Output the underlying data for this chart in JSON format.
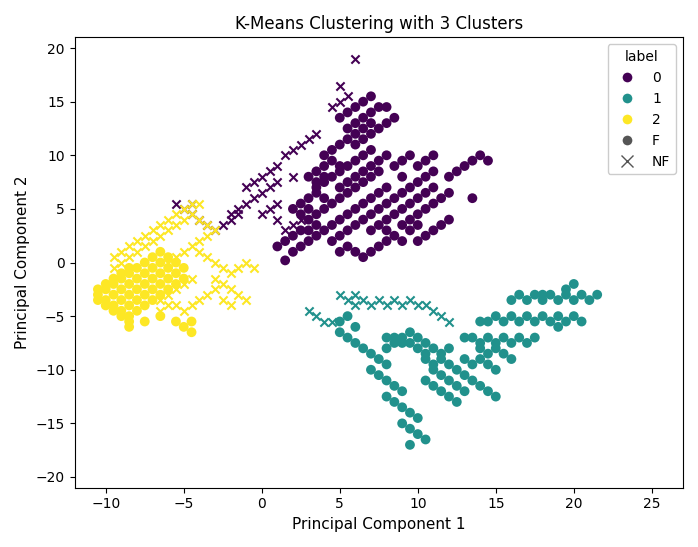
{
  "title": "K-Means Clustering with 3 Clusters",
  "xlabel": "Principal Component 1",
  "ylabel": "Principal Component 2",
  "xlim": [
    -12,
    27
  ],
  "ylim": [
    -21,
    21
  ],
  "colors": {
    "0": "#440154",
    "1": "#21918c",
    "2": "#fde725"
  },
  "legend_title": "label",
  "cluster0_F": [
    [
      1.5,
      0.2
    ],
    [
      2.0,
      1.0
    ],
    [
      2.5,
      1.5
    ],
    [
      3.0,
      2.0
    ],
    [
      3.5,
      2.5
    ],
    [
      4.0,
      3.0
    ],
    [
      4.5,
      3.5
    ],
    [
      5.0,
      4.0
    ],
    [
      5.5,
      4.5
    ],
    [
      6.0,
      5.0
    ],
    [
      6.5,
      5.5
    ],
    [
      7.0,
      6.0
    ],
    [
      7.5,
      6.5
    ],
    [
      8.0,
      7.0
    ],
    [
      3.0,
      4.0
    ],
    [
      3.5,
      4.5
    ],
    [
      4.0,
      5.0
    ],
    [
      4.5,
      5.5
    ],
    [
      5.0,
      6.0
    ],
    [
      5.5,
      6.5
    ],
    [
      6.0,
      7.0
    ],
    [
      6.5,
      7.5
    ],
    [
      7.0,
      8.0
    ],
    [
      7.5,
      8.5
    ],
    [
      3.5,
      7.0
    ],
    [
      4.0,
      7.5
    ],
    [
      4.5,
      8.0
    ],
    [
      5.0,
      8.5
    ],
    [
      5.5,
      9.0
    ],
    [
      6.0,
      9.5
    ],
    [
      6.5,
      10.0
    ],
    [
      7.0,
      10.5
    ],
    [
      4.0,
      10.0
    ],
    [
      4.5,
      10.5
    ],
    [
      5.0,
      11.0
    ],
    [
      5.5,
      11.5
    ],
    [
      6.0,
      12.0
    ],
    [
      6.5,
      12.5
    ],
    [
      7.0,
      13.0
    ],
    [
      5.0,
      13.5
    ],
    [
      5.5,
      14.0
    ],
    [
      6.0,
      14.5
    ],
    [
      6.5,
      15.0
    ],
    [
      7.0,
      15.5
    ],
    [
      3.0,
      3.0
    ],
    [
      3.5,
      3.5
    ],
    [
      2.5,
      3.0
    ],
    [
      2.0,
      2.5
    ],
    [
      1.5,
      2.0
    ],
    [
      1.0,
      1.5
    ],
    [
      4.5,
      2.0
    ],
    [
      5.0,
      2.5
    ],
    [
      5.5,
      3.0
    ],
    [
      6.0,
      3.5
    ],
    [
      6.5,
      4.0
    ],
    [
      7.0,
      4.5
    ],
    [
      7.5,
      5.0
    ],
    [
      8.0,
      5.5
    ],
    [
      8.5,
      6.0
    ],
    [
      9.0,
      6.5
    ],
    [
      9.5,
      7.0
    ],
    [
      10.0,
      7.5
    ],
    [
      10.5,
      8.0
    ],
    [
      11.0,
      8.5
    ],
    [
      8.0,
      4.0
    ],
    [
      8.5,
      4.5
    ],
    [
      9.0,
      5.0
    ],
    [
      9.5,
      5.5
    ],
    [
      10.0,
      6.0
    ],
    [
      10.5,
      6.5
    ],
    [
      11.0,
      7.0
    ],
    [
      9.0,
      3.5
    ],
    [
      9.5,
      4.0
    ],
    [
      10.0,
      4.5
    ],
    [
      10.5,
      5.0
    ],
    [
      11.0,
      5.5
    ],
    [
      11.5,
      6.0
    ],
    [
      12.0,
      6.5
    ],
    [
      7.0,
      3.0
    ],
    [
      7.5,
      3.5
    ],
    [
      8.0,
      3.0
    ],
    [
      8.5,
      2.5
    ],
    [
      9.0,
      2.0
    ],
    [
      9.5,
      3.0
    ],
    [
      10.0,
      3.5
    ],
    [
      5.0,
      1.0
    ],
    [
      5.5,
      1.5
    ],
    [
      6.0,
      1.0
    ],
    [
      6.5,
      0.5
    ],
    [
      7.0,
      1.0
    ],
    [
      7.5,
      1.5
    ],
    [
      8.0,
      2.0
    ],
    [
      3.0,
      6.0
    ],
    [
      3.5,
      6.5
    ],
    [
      4.0,
      6.0
    ],
    [
      2.5,
      5.5
    ],
    [
      2.0,
      5.0
    ],
    [
      2.5,
      4.5
    ],
    [
      3.0,
      5.0
    ],
    [
      5.0,
      7.0
    ],
    [
      5.5,
      7.5
    ],
    [
      6.0,
      8.0
    ],
    [
      6.5,
      8.5
    ],
    [
      7.0,
      9.0
    ],
    [
      7.5,
      9.5
    ],
    [
      8.0,
      10.0
    ],
    [
      4.0,
      9.0
    ],
    [
      4.5,
      9.5
    ],
    [
      5.0,
      9.0
    ],
    [
      3.5,
      8.5
    ],
    [
      3.0,
      8.0
    ],
    [
      3.5,
      7.5
    ],
    [
      4.0,
      8.0
    ],
    [
      6.0,
      11.0
    ],
    [
      6.5,
      11.5
    ],
    [
      7.0,
      12.0
    ],
    [
      7.5,
      12.5
    ],
    [
      8.0,
      13.0
    ],
    [
      8.5,
      13.5
    ],
    [
      5.5,
      12.5
    ],
    [
      6.0,
      13.0
    ],
    [
      6.5,
      13.5
    ],
    [
      7.0,
      14.0
    ],
    [
      7.5,
      14.5
    ],
    [
      8.0,
      14.5
    ],
    [
      8.5,
      9.0
    ],
    [
      9.0,
      9.5
    ],
    [
      9.5,
      10.0
    ],
    [
      10.0,
      9.0
    ],
    [
      10.5,
      9.5
    ],
    [
      11.0,
      10.0
    ],
    [
      9.0,
      8.0
    ],
    [
      10.0,
      2.0
    ],
    [
      10.5,
      2.5
    ],
    [
      11.0,
      3.0
    ],
    [
      11.5,
      3.5
    ],
    [
      12.0,
      4.0
    ],
    [
      13.5,
      6.0
    ],
    [
      12.0,
      8.0
    ],
    [
      12.5,
      8.5
    ],
    [
      13.0,
      9.0
    ],
    [
      13.5,
      9.5
    ],
    [
      14.0,
      10.0
    ],
    [
      14.5,
      9.5
    ]
  ],
  "cluster0_NF": [
    [
      0.0,
      8.0
    ],
    [
      0.5,
      8.5
    ],
    [
      -0.5,
      7.5
    ],
    [
      1.0,
      9.0
    ],
    [
      -1.0,
      7.0
    ],
    [
      1.5,
      10.0
    ],
    [
      2.0,
      10.5
    ],
    [
      2.5,
      11.0
    ],
    [
      3.0,
      11.5
    ],
    [
      3.5,
      12.0
    ],
    [
      -1.0,
      5.5
    ],
    [
      -0.5,
      6.0
    ],
    [
      0.0,
      6.5
    ],
    [
      0.5,
      7.0
    ],
    [
      1.0,
      7.5
    ],
    [
      -2.0,
      4.5
    ],
    [
      -1.5,
      5.0
    ],
    [
      0.0,
      4.5
    ],
    [
      0.5,
      5.0
    ],
    [
      1.0,
      5.5
    ],
    [
      -2.5,
      3.5
    ],
    [
      -2.0,
      4.0
    ],
    [
      -1.5,
      4.5
    ],
    [
      -3.0,
      3.0
    ],
    [
      -3.5,
      3.5
    ],
    [
      -4.0,
      4.0
    ],
    [
      -4.5,
      4.5
    ],
    [
      -5.0,
      5.0
    ],
    [
      -5.5,
      5.5
    ],
    [
      -4.5,
      5.5
    ],
    [
      2.0,
      3.5
    ],
    [
      2.5,
      4.0
    ],
    [
      1.5,
      3.0
    ],
    [
      1.0,
      4.0
    ],
    [
      2.0,
      8.0
    ],
    [
      4.5,
      14.5
    ],
    [
      5.0,
      15.0
    ],
    [
      5.5,
      15.5
    ],
    [
      5.0,
      16.5
    ],
    [
      6.0,
      19.0
    ]
  ],
  "cluster1_F": [
    [
      5.0,
      -5.5
    ],
    [
      5.5,
      -5.0
    ],
    [
      5.0,
      -6.5
    ],
    [
      5.5,
      -7.0
    ],
    [
      6.0,
      -6.0
    ],
    [
      6.0,
      -7.5
    ],
    [
      6.5,
      -8.0
    ],
    [
      7.0,
      -8.5
    ],
    [
      7.5,
      -9.0
    ],
    [
      8.0,
      -9.5
    ],
    [
      7.0,
      -10.0
    ],
    [
      7.5,
      -10.5
    ],
    [
      8.0,
      -11.0
    ],
    [
      8.5,
      -11.5
    ],
    [
      9.0,
      -12.0
    ],
    [
      8.0,
      -12.5
    ],
    [
      8.5,
      -13.0
    ],
    [
      9.0,
      -13.5
    ],
    [
      9.5,
      -14.0
    ],
    [
      10.0,
      -14.5
    ],
    [
      9.0,
      -15.0
    ],
    [
      9.5,
      -15.5
    ],
    [
      10.0,
      -16.0
    ],
    [
      10.5,
      -16.5
    ],
    [
      9.5,
      -17.0
    ],
    [
      10.5,
      -11.0
    ],
    [
      11.0,
      -11.5
    ],
    [
      11.5,
      -12.0
    ],
    [
      12.0,
      -12.5
    ],
    [
      12.5,
      -13.0
    ],
    [
      11.0,
      -10.0
    ],
    [
      11.5,
      -10.5
    ],
    [
      12.0,
      -11.0
    ],
    [
      12.5,
      -11.5
    ],
    [
      13.0,
      -12.0
    ],
    [
      10.5,
      -9.0
    ],
    [
      11.0,
      -9.5
    ],
    [
      11.5,
      -9.0
    ],
    [
      12.0,
      -9.5
    ],
    [
      12.5,
      -10.0
    ],
    [
      10.0,
      -8.0
    ],
    [
      10.5,
      -8.5
    ],
    [
      11.0,
      -8.0
    ],
    [
      11.5,
      -8.5
    ],
    [
      12.0,
      -8.0
    ],
    [
      9.0,
      -7.0
    ],
    [
      9.5,
      -7.5
    ],
    [
      10.0,
      -7.0
    ],
    [
      10.5,
      -7.5
    ],
    [
      9.5,
      -6.5
    ],
    [
      8.5,
      -7.0
    ],
    [
      9.0,
      -7.5
    ],
    [
      8.0,
      -7.0
    ],
    [
      8.5,
      -7.5
    ],
    [
      8.0,
      -8.0
    ],
    [
      13.0,
      -10.5
    ],
    [
      13.5,
      -11.0
    ],
    [
      14.0,
      -11.5
    ],
    [
      14.5,
      -12.0
    ],
    [
      15.0,
      -12.5
    ],
    [
      13.0,
      -9.0
    ],
    [
      13.5,
      -9.5
    ],
    [
      14.0,
      -9.0
    ],
    [
      14.5,
      -9.5
    ],
    [
      15.0,
      -10.0
    ],
    [
      14.0,
      -8.0
    ],
    [
      14.5,
      -8.5
    ],
    [
      15.0,
      -8.0
    ],
    [
      15.5,
      -8.5
    ],
    [
      16.0,
      -9.0
    ],
    [
      15.5,
      -7.0
    ],
    [
      16.0,
      -7.5
    ],
    [
      16.5,
      -7.0
    ],
    [
      17.0,
      -7.5
    ],
    [
      17.5,
      -7.0
    ],
    [
      16.5,
      -5.5
    ],
    [
      17.0,
      -5.0
    ],
    [
      17.5,
      -5.5
    ],
    [
      18.0,
      -5.0
    ],
    [
      18.5,
      -5.5
    ],
    [
      19.0,
      -5.0
    ],
    [
      19.5,
      -5.5
    ],
    [
      20.0,
      -5.0
    ],
    [
      20.5,
      -5.5
    ],
    [
      19.0,
      -6.0
    ],
    [
      18.0,
      -3.5
    ],
    [
      18.5,
      -3.0
    ],
    [
      19.0,
      -3.5
    ],
    [
      19.5,
      -3.0
    ],
    [
      20.0,
      -3.5
    ],
    [
      20.5,
      -3.0
    ],
    [
      21.0,
      -3.5
    ],
    [
      21.5,
      -3.0
    ],
    [
      20.0,
      -2.0
    ],
    [
      19.5,
      -2.5
    ],
    [
      16.0,
      -3.5
    ],
    [
      16.5,
      -3.0
    ],
    [
      17.0,
      -3.5
    ],
    [
      17.5,
      -3.0
    ],
    [
      18.0,
      -3.0
    ],
    [
      14.5,
      -5.5
    ],
    [
      15.0,
      -5.0
    ],
    [
      15.5,
      -5.5
    ],
    [
      16.0,
      -5.0
    ],
    [
      14.0,
      -5.5
    ],
    [
      13.5,
      -7.0
    ],
    [
      14.0,
      -7.5
    ],
    [
      14.5,
      -7.0
    ],
    [
      15.0,
      -7.5
    ],
    [
      13.0,
      -7.0
    ]
  ],
  "cluster1_NF": [
    [
      5.5,
      -3.5
    ],
    [
      6.0,
      -4.0
    ],
    [
      6.5,
      -3.5
    ],
    [
      7.0,
      -4.0
    ],
    [
      7.5,
      -3.5
    ],
    [
      8.0,
      -4.0
    ],
    [
      8.5,
      -3.5
    ],
    [
      9.0,
      -4.0
    ],
    [
      9.5,
      -3.5
    ],
    [
      10.0,
      -4.0
    ],
    [
      10.5,
      -4.0
    ],
    [
      11.0,
      -4.5
    ],
    [
      11.5,
      -5.0
    ],
    [
      12.0,
      -5.5
    ],
    [
      4.5,
      -5.5
    ],
    [
      3.5,
      -5.0
    ],
    [
      4.0,
      -5.5
    ],
    [
      3.0,
      -4.5
    ],
    [
      5.0,
      -3.0
    ],
    [
      6.0,
      -3.0
    ]
  ],
  "cluster2_F": [
    [
      -10.5,
      -2.5
    ],
    [
      -10.0,
      -2.0
    ],
    [
      -9.5,
      -1.5
    ],
    [
      -9.0,
      -1.0
    ],
    [
      -8.5,
      -0.5
    ],
    [
      -10.5,
      -3.0
    ],
    [
      -10.0,
      -3.5
    ],
    [
      -9.5,
      -4.0
    ],
    [
      -9.0,
      -4.5
    ],
    [
      -8.5,
      -5.0
    ],
    [
      -10.5,
      -3.5
    ],
    [
      -10.0,
      -4.0
    ],
    [
      -9.5,
      -4.5
    ],
    [
      -9.0,
      -5.0
    ],
    [
      -8.5,
      -5.5
    ],
    [
      -10.0,
      -2.5
    ],
    [
      -9.5,
      -3.0
    ],
    [
      -9.0,
      -3.5
    ],
    [
      -8.5,
      -4.0
    ],
    [
      -8.0,
      -4.5
    ],
    [
      -9.5,
      -2.0
    ],
    [
      -9.0,
      -2.5
    ],
    [
      -8.5,
      -3.0
    ],
    [
      -8.0,
      -3.5
    ],
    [
      -7.5,
      -4.0
    ],
    [
      -9.0,
      -1.5
    ],
    [
      -8.5,
      -2.0
    ],
    [
      -8.0,
      -2.5
    ],
    [
      -7.5,
      -3.0
    ],
    [
      -7.0,
      -3.5
    ],
    [
      -8.5,
      -1.0
    ],
    [
      -8.0,
      -1.5
    ],
    [
      -7.5,
      -2.0
    ],
    [
      -7.0,
      -2.5
    ],
    [
      -6.5,
      -3.0
    ],
    [
      -8.0,
      -0.5
    ],
    [
      -7.5,
      -1.0
    ],
    [
      -7.0,
      -1.5
    ],
    [
      -6.5,
      -2.0
    ],
    [
      -6.0,
      -2.5
    ],
    [
      -7.5,
      -0.0
    ],
    [
      -7.0,
      -0.5
    ],
    [
      -6.5,
      -1.0
    ],
    [
      -6.0,
      -1.5
    ],
    [
      -5.5,
      -2.0
    ],
    [
      -7.0,
      0.5
    ],
    [
      -6.5,
      0.0
    ],
    [
      -6.0,
      -0.5
    ],
    [
      -5.5,
      -1.0
    ],
    [
      -5.0,
      -1.5
    ],
    [
      -6.5,
      1.0
    ],
    [
      -6.0,
      0.5
    ],
    [
      -5.5,
      0.0
    ],
    [
      -5.0,
      -0.5
    ],
    [
      -8.5,
      -6.0
    ],
    [
      -7.5,
      -5.5
    ],
    [
      -6.5,
      -5.0
    ],
    [
      -5.5,
      -5.5
    ],
    [
      -5.0,
      -6.0
    ],
    [
      -4.5,
      -5.5
    ],
    [
      -4.5,
      -6.5
    ]
  ],
  "cluster2_NF": [
    [
      -9.5,
      0.5
    ],
    [
      -9.0,
      1.0
    ],
    [
      -8.5,
      1.5
    ],
    [
      -8.0,
      2.0
    ],
    [
      -7.5,
      2.5
    ],
    [
      -9.5,
      -0.5
    ],
    [
      -9.0,
      0.0
    ],
    [
      -8.5,
      0.5
    ],
    [
      -8.0,
      1.0
    ],
    [
      -7.5,
      1.5
    ],
    [
      -7.0,
      2.0
    ],
    [
      -6.5,
      2.5
    ],
    [
      -6.0,
      3.0
    ],
    [
      -5.5,
      3.5
    ],
    [
      -5.0,
      4.0
    ],
    [
      -7.0,
      3.0
    ],
    [
      -6.5,
      3.5
    ],
    [
      -6.0,
      4.0
    ],
    [
      -5.5,
      4.5
    ],
    [
      -5.0,
      5.0
    ],
    [
      -4.5,
      5.5
    ],
    [
      -4.0,
      5.5
    ],
    [
      -4.5,
      4.5
    ],
    [
      -4.0,
      4.0
    ],
    [
      -3.5,
      3.5
    ],
    [
      -3.0,
      3.0
    ],
    [
      -3.5,
      2.5
    ],
    [
      -4.0,
      2.0
    ],
    [
      -4.5,
      1.5
    ],
    [
      -5.0,
      1.0
    ],
    [
      -5.5,
      0.5
    ],
    [
      -6.0,
      0.0
    ],
    [
      -4.0,
      1.0
    ],
    [
      -3.5,
      0.5
    ],
    [
      -3.0,
      0.0
    ],
    [
      -2.5,
      -0.5
    ],
    [
      -2.0,
      -1.0
    ],
    [
      -1.5,
      -0.5
    ],
    [
      -1.0,
      0.0
    ],
    [
      -0.5,
      -0.5
    ],
    [
      -3.0,
      -1.5
    ],
    [
      -2.5,
      -2.0
    ],
    [
      -2.0,
      -2.5
    ],
    [
      -1.5,
      -3.0
    ],
    [
      -1.0,
      -3.5
    ],
    [
      -4.5,
      -1.5
    ],
    [
      -5.0,
      -2.0
    ],
    [
      -5.5,
      -2.5
    ],
    [
      -6.0,
      -3.0
    ],
    [
      -6.5,
      -3.5
    ],
    [
      -6.0,
      -4.0
    ],
    [
      -6.5,
      -4.5
    ],
    [
      -5.5,
      -4.0
    ],
    [
      -5.0,
      -4.5
    ],
    [
      -4.5,
      -4.0
    ],
    [
      -4.0,
      -3.5
    ],
    [
      -3.5,
      -3.0
    ],
    [
      -3.0,
      -2.5
    ],
    [
      -2.5,
      -3.5
    ],
    [
      -2.0,
      -4.0
    ]
  ]
}
